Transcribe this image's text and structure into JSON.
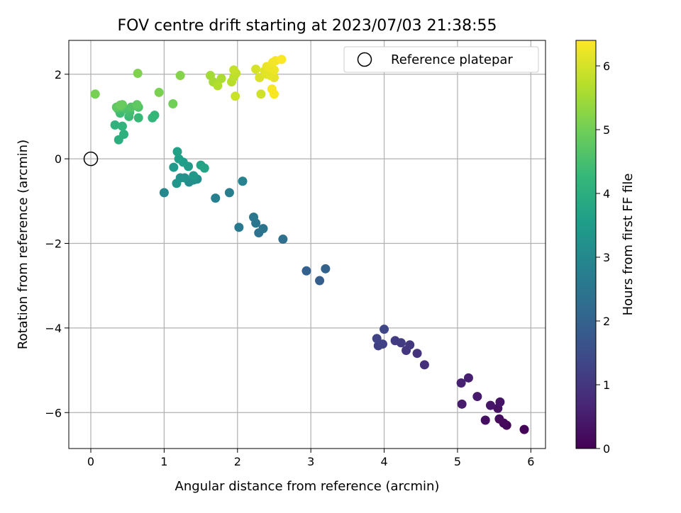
{
  "chart_data": {
    "type": "scatter",
    "title": "FOV centre drift starting at 2023/07/03 21:38:55",
    "xlabel": "Angular distance from reference (arcmin)",
    "ylabel": "Rotation from reference (arcmin)",
    "xlim": [
      -0.3,
      6.2
    ],
    "ylim": [
      -6.85,
      2.8
    ],
    "xticks": [
      0,
      1,
      2,
      3,
      4,
      5,
      6
    ],
    "xtick_labels": [
      "0",
      "1",
      "2",
      "3",
      "4",
      "5",
      "6"
    ],
    "yticks": [
      2,
      0,
      -2,
      -4,
      -6
    ],
    "ytick_labels": [
      "2",
      "0",
      "−2",
      "−4",
      "−6"
    ],
    "grid": true,
    "legend": {
      "placement": "upper right",
      "entries": [
        "Reference platepar"
      ]
    },
    "reference_point": {
      "x": 0,
      "y": 0,
      "marker": "open-circle"
    },
    "colorbar": {
      "label": "Hours from first FF file",
      "range": [
        0,
        6.4
      ],
      "ticks": [
        0,
        1,
        2,
        3,
        4,
        5,
        6
      ],
      "tick_labels": [
        "0",
        "1",
        "2",
        "3",
        "4",
        "5",
        "6"
      ],
      "colormap": "viridis"
    },
    "series": [
      {
        "points": [
          {
            "x": 5.91,
            "y": -6.4,
            "c": 0.05
          },
          {
            "x": 5.67,
            "y": -6.3,
            "c": 0.1
          },
          {
            "x": 5.63,
            "y": -6.25,
            "c": 0.15
          },
          {
            "x": 5.57,
            "y": -6.15,
            "c": 0.2
          },
          {
            "x": 5.38,
            "y": -6.18,
            "c": 0.25
          },
          {
            "x": 5.55,
            "y": -5.9,
            "c": 0.3
          },
          {
            "x": 5.58,
            "y": -5.75,
            "c": 0.35
          },
          {
            "x": 5.45,
            "y": -5.83,
            "c": 0.4
          },
          {
            "x": 5.27,
            "y": -5.62,
            "c": 0.45
          },
          {
            "x": 5.06,
            "y": -5.8,
            "c": 0.5
          },
          {
            "x": 5.15,
            "y": -5.18,
            "c": 0.55
          },
          {
            "x": 5.05,
            "y": -5.3,
            "c": 0.6
          },
          {
            "x": 4.55,
            "y": -4.87,
            "c": 0.85
          },
          {
            "x": 4.45,
            "y": -4.6,
            "c": 0.95
          },
          {
            "x": 4.3,
            "y": -4.53,
            "c": 1.0
          },
          {
            "x": 4.35,
            "y": -4.4,
            "c": 1.05
          },
          {
            "x": 4.23,
            "y": -4.35,
            "c": 1.1
          },
          {
            "x": 4.15,
            "y": -4.3,
            "c": 1.15
          },
          {
            "x": 3.92,
            "y": -4.42,
            "c": 1.2
          },
          {
            "x": 3.98,
            "y": -4.38,
            "c": 1.25
          },
          {
            "x": 3.9,
            "y": -4.25,
            "c": 1.3
          },
          {
            "x": 4.0,
            "y": -4.03,
            "c": 1.35
          },
          {
            "x": 3.12,
            "y": -2.88,
            "c": 1.9
          },
          {
            "x": 2.94,
            "y": -2.65,
            "c": 1.95
          },
          {
            "x": 3.2,
            "y": -2.6,
            "c": 2.0
          },
          {
            "x": 2.62,
            "y": -1.9,
            "c": 2.35
          },
          {
            "x": 2.29,
            "y": -1.75,
            "c": 2.4
          },
          {
            "x": 2.35,
            "y": -1.65,
            "c": 2.45
          },
          {
            "x": 2.25,
            "y": -1.52,
            "c": 2.5
          },
          {
            "x": 2.22,
            "y": -1.38,
            "c": 2.55
          },
          {
            "x": 2.02,
            "y": -1.62,
            "c": 2.6
          },
          {
            "x": 1.89,
            "y": -0.8,
            "c": 2.75
          },
          {
            "x": 1.7,
            "y": -0.93,
            "c": 2.8
          },
          {
            "x": 2.07,
            "y": -0.53,
            "c": 2.85
          },
          {
            "x": 1.0,
            "y": -0.8,
            "c": 3.0
          },
          {
            "x": 1.34,
            "y": -0.55,
            "c": 3.1
          },
          {
            "x": 1.4,
            "y": -0.5,
            "c": 3.15
          },
          {
            "x": 1.45,
            "y": -0.48,
            "c": 3.2
          },
          {
            "x": 1.28,
            "y": -0.45,
            "c": 3.25
          },
          {
            "x": 1.22,
            "y": -0.45,
            "c": 3.3
          },
          {
            "x": 1.17,
            "y": -0.58,
            "c": 3.35
          },
          {
            "x": 1.4,
            "y": -0.4,
            "c": 3.4
          },
          {
            "x": 1.13,
            "y": -0.2,
            "c": 3.45
          },
          {
            "x": 1.33,
            "y": -0.18,
            "c": 3.5
          },
          {
            "x": 1.26,
            "y": -0.08,
            "c": 3.55
          },
          {
            "x": 1.2,
            "y": 0.0,
            "c": 3.6
          },
          {
            "x": 1.18,
            "y": 0.17,
            "c": 3.65
          },
          {
            "x": 1.5,
            "y": -0.15,
            "c": 3.7
          },
          {
            "x": 1.55,
            "y": -0.22,
            "c": 3.75
          },
          {
            "x": 0.38,
            "y": 0.45,
            "c": 4.0
          },
          {
            "x": 0.45,
            "y": 0.58,
            "c": 4.05
          },
          {
            "x": 0.33,
            "y": 0.8,
            "c": 4.1
          },
          {
            "x": 0.43,
            "y": 0.77,
            "c": 4.15
          },
          {
            "x": 0.84,
            "y": 0.97,
            "c": 4.2
          },
          {
            "x": 0.87,
            "y": 1.03,
            "c": 4.25
          },
          {
            "x": 0.65,
            "y": 0.97,
            "c": 4.3
          },
          {
            "x": 0.52,
            "y": 1.0,
            "c": 4.35
          },
          {
            "x": 0.4,
            "y": 1.08,
            "c": 4.4
          },
          {
            "x": 0.53,
            "y": 1.1,
            "c": 4.45
          },
          {
            "x": 0.37,
            "y": 1.18,
            "c": 4.5
          },
          {
            "x": 0.47,
            "y": 1.18,
            "c": 4.55
          },
          {
            "x": 0.65,
            "y": 1.22,
            "c": 4.6
          },
          {
            "x": 0.55,
            "y": 1.22,
            "c": 4.65
          },
          {
            "x": 0.41,
            "y": 1.23,
            "c": 4.7
          },
          {
            "x": 0.35,
            "y": 1.22,
            "c": 4.75
          },
          {
            "x": 0.63,
            "y": 1.28,
            "c": 4.8
          },
          {
            "x": 0.43,
            "y": 1.28,
            "c": 4.85
          },
          {
            "x": 0.4,
            "y": 1.27,
            "c": 4.9
          },
          {
            "x": 1.12,
            "y": 1.3,
            "c": 5.0
          },
          {
            "x": 0.06,
            "y": 1.53,
            "c": 5.05
          },
          {
            "x": 0.93,
            "y": 1.57,
            "c": 5.1
          },
          {
            "x": 1.22,
            "y": 1.97,
            "c": 5.2
          },
          {
            "x": 0.64,
            "y": 2.02,
            "c": 5.15
          },
          {
            "x": 1.63,
            "y": 1.97,
            "c": 5.5
          },
          {
            "x": 1.67,
            "y": 1.82,
            "c": 5.55
          },
          {
            "x": 1.78,
            "y": 1.9,
            "c": 5.6
          },
          {
            "x": 1.73,
            "y": 1.73,
            "c": 5.65
          },
          {
            "x": 1.92,
            "y": 1.82,
            "c": 5.7
          },
          {
            "x": 1.95,
            "y": 1.93,
            "c": 5.75
          },
          {
            "x": 1.98,
            "y": 2.02,
            "c": 5.8
          },
          {
            "x": 1.95,
            "y": 2.1,
            "c": 5.85
          },
          {
            "x": 1.97,
            "y": 1.48,
            "c": 5.9
          },
          {
            "x": 2.32,
            "y": 1.53,
            "c": 5.95
          },
          {
            "x": 2.25,
            "y": 2.12,
            "c": 6.0
          },
          {
            "x": 2.3,
            "y": 1.92,
            "c": 6.05
          },
          {
            "x": 2.37,
            "y": 2.08,
            "c": 6.1
          },
          {
            "x": 2.4,
            "y": 2.0,
            "c": 6.12
          },
          {
            "x": 2.45,
            "y": 1.97,
            "c": 6.15
          },
          {
            "x": 2.5,
            "y": 1.92,
            "c": 6.18
          },
          {
            "x": 2.4,
            "y": 2.18,
            "c": 6.2
          },
          {
            "x": 2.45,
            "y": 2.15,
            "c": 6.22
          },
          {
            "x": 2.5,
            "y": 2.1,
            "c": 6.25
          },
          {
            "x": 2.48,
            "y": 2.28,
            "c": 6.28
          },
          {
            "x": 2.52,
            "y": 2.32,
            "c": 6.3
          },
          {
            "x": 2.47,
            "y": 1.65,
            "c": 6.33
          },
          {
            "x": 2.5,
            "y": 1.53,
            "c": 6.35
          },
          {
            "x": 2.6,
            "y": 2.35,
            "c": 6.38
          }
        ]
      }
    ]
  }
}
